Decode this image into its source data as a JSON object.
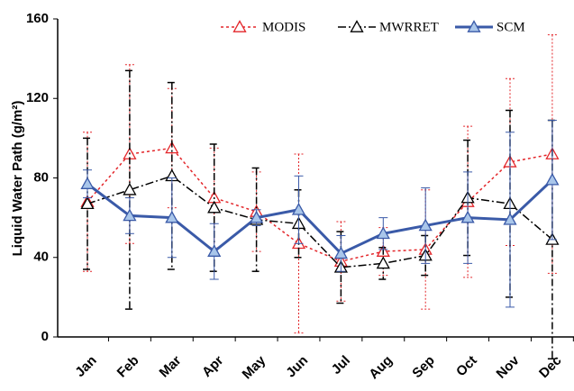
{
  "chart_data": {
    "type": "line",
    "y_label": "Liquid Water Path (g/m²)",
    "categories": [
      "Jan",
      "Feb",
      "Mar",
      "Apr",
      "May",
      "Jun",
      "Jul",
      "Aug",
      "Sep",
      "Oct",
      "Nov",
      "Dec"
    ],
    "series": [
      {
        "name": "MODIS",
        "color": "#e3262a",
        "values": [
          68,
          92,
          95,
          70,
          63,
          47,
          38,
          43,
          44,
          68,
          88,
          92
        ],
        "errors": [
          35,
          45,
          30,
          25,
          20,
          45,
          20,
          12,
          30,
          38,
          42,
          60
        ]
      },
      {
        "name": "MWRRET",
        "color": "#000000",
        "values": [
          67,
          74,
          81,
          65,
          59,
          57,
          35,
          37,
          41,
          70,
          67,
          49
        ],
        "errors": [
          33,
          60,
          47,
          32,
          26,
          17,
          18,
          8,
          10,
          29,
          47,
          60
        ]
      },
      {
        "name": "SCM",
        "color": "#3a5aa8",
        "values": [
          77,
          61,
          60,
          43,
          60,
          64,
          42,
          52,
          56,
          60,
          59,
          79
        ],
        "errors": [
          7,
          9,
          20,
          14,
          4,
          17,
          9,
          8,
          19,
          23,
          44,
          30
        ]
      }
    ],
    "ylim": [
      0,
      160
    ],
    "yticks": [
      0,
      40,
      80,
      120,
      160
    ],
    "grid": false,
    "legend": "top-right"
  }
}
